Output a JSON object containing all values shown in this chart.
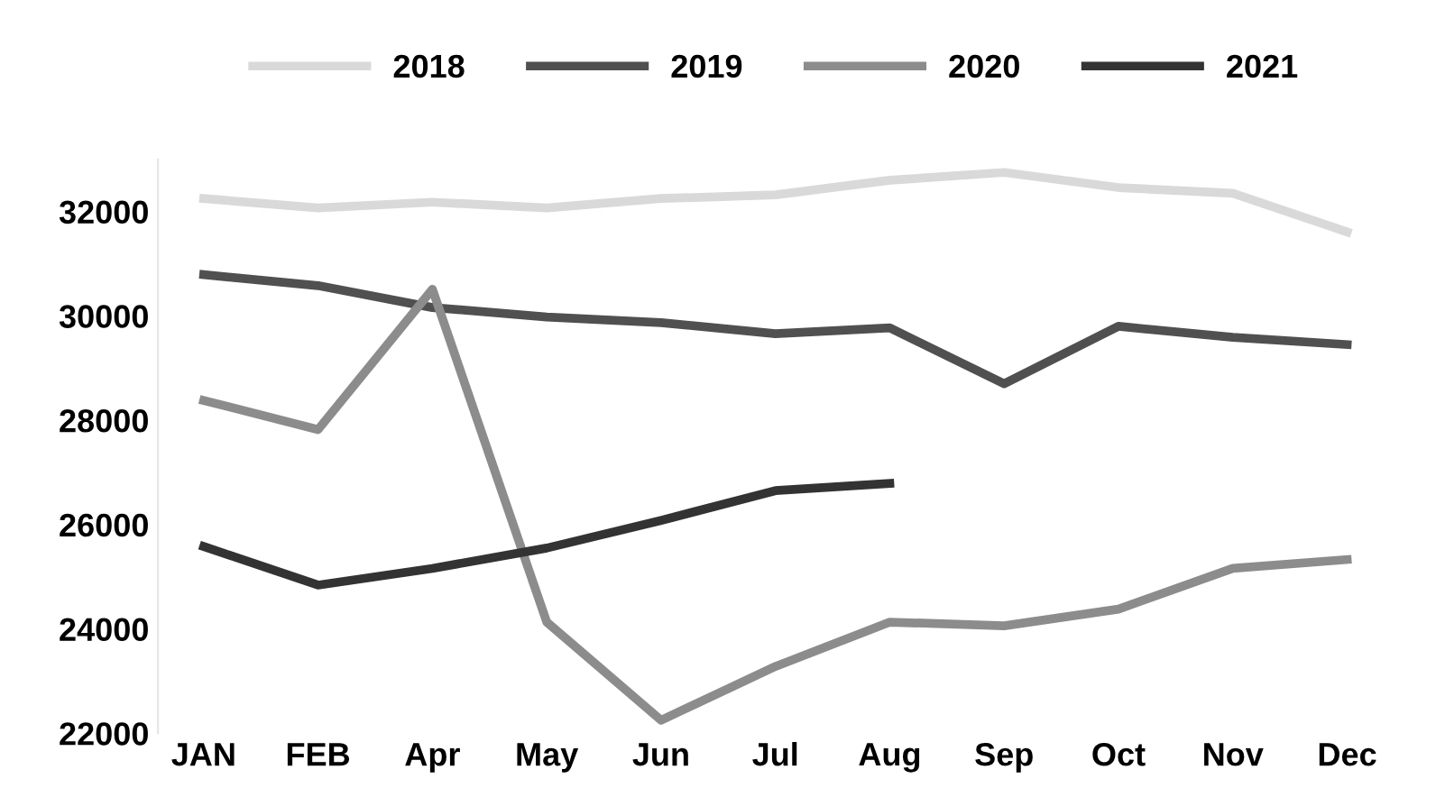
{
  "chart_data": {
    "type": "line",
    "categories": [
      "JAN",
      "FEB",
      "Apr",
      "May",
      "Jun",
      "Jul",
      "Aug",
      "Sep",
      "Oct",
      "Nov",
      "Dec"
    ],
    "series": [
      {
        "name": "2018",
        "color": "#d9d9d9",
        "values": [
          32250,
          32070,
          32180,
          32070,
          32250,
          32320,
          32600,
          32750,
          32460,
          32350,
          31610
        ]
      },
      {
        "name": "2019",
        "color": "#505050",
        "values": [
          30790,
          30580,
          30160,
          29980,
          29870,
          29660,
          29770,
          28700,
          29800,
          29590,
          29450
        ]
      },
      {
        "name": "2020",
        "color": "#8c8c8c",
        "values": [
          28380,
          27820,
          30510,
          24130,
          22250,
          23280,
          24130,
          24060,
          24380,
          25160,
          25330
        ]
      },
      {
        "name": "2021",
        "color": "#333333",
        "values": [
          25580,
          24840,
          25160,
          25550,
          26080,
          26650,
          26790,
          null,
          null,
          null,
          null
        ]
      }
    ],
    "ylim": [
      22000,
      33000
    ],
    "yticks": [
      22000,
      24000,
      26000,
      28000,
      30000,
      32000
    ],
    "grid": false,
    "legend": "top",
    "marker": "none",
    "line_style": "solid"
  }
}
